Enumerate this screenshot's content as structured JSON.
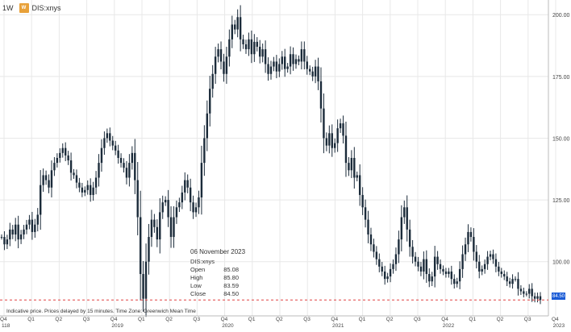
{
  "header": {
    "interval": "1W",
    "symbol_badge": "W",
    "symbol": "DIS:xnys"
  },
  "tooltip": {
    "date": "06 November 2023",
    "symbol": "DIS:xnys",
    "rows": [
      {
        "label": "Open",
        "value": "85.08"
      },
      {
        "label": "High",
        "value": "85.80"
      },
      {
        "label": "Low",
        "value": "83.59"
      },
      {
        "label": "Close",
        "value": "84.50"
      }
    ]
  },
  "footer": {
    "note": "Indicative price. Prices delayed by 15 minutes. Time Zone: Greenwich Mean Time"
  },
  "last_price_label": "84.50",
  "colors": {
    "candle": "#1b2b3a",
    "grid": "#e8e8e8",
    "last_price_line": "#e04040",
    "last_price_flag": "#1a5bd6"
  },
  "chart_data": {
    "type": "candlestick",
    "interval": "1W",
    "ylim": [
      80,
      203
    ],
    "y_ticks": [
      "100.00",
      "125.00",
      "150.00",
      "175.00",
      "200.00"
    ],
    "last_close": 84.5,
    "x_quarter_labels": [
      "Q4",
      "Q1",
      "Q2",
      "Q3",
      "Q4",
      "Q1",
      "Q2",
      "Q3",
      "Q4",
      "Q1",
      "Q2",
      "Q3",
      "Q4",
      "Q1",
      "Q2",
      "Q3",
      "Q4",
      "Q1",
      "Q2",
      "Q3",
      "Q4"
    ],
    "x_year_labels": [
      {
        "label": "118",
        "q_index": 0
      },
      {
        "label": "2019",
        "q_index": 2
      },
      {
        "label": "2020",
        "q_index": 6
      },
      {
        "label": "2021",
        "q_index": 10
      },
      {
        "label": "2022",
        "q_index": 14
      },
      {
        "label": "2023",
        "q_index": 18
      }
    ],
    "weekly_close": [
      110,
      107,
      109,
      113,
      111,
      115,
      109,
      111,
      113,
      115,
      117,
      112,
      115,
      119,
      131,
      135,
      133,
      130,
      137,
      140,
      142,
      144,
      146,
      143,
      141,
      136,
      135,
      132,
      130,
      128,
      129,
      131,
      127,
      130,
      134,
      140,
      146,
      150,
      152,
      149,
      147,
      145,
      142,
      140,
      138,
      134,
      140,
      144,
      133,
      118,
      95,
      85,
      100,
      110,
      117,
      114,
      109,
      120,
      124,
      125,
      118,
      110,
      118,
      122,
      124,
      128,
      133,
      130,
      124,
      120,
      122,
      126,
      140,
      150,
      160,
      170,
      176,
      183,
      186,
      181,
      176,
      183,
      190,
      196,
      194,
      199,
      190,
      188,
      186,
      190,
      184,
      189,
      187,
      183,
      186,
      180,
      176,
      179,
      181,
      177,
      180,
      183,
      178,
      179,
      184,
      180,
      182,
      181,
      186,
      181,
      178,
      177,
      175,
      179,
      173,
      162,
      150,
      147,
      152,
      146,
      148,
      154,
      156,
      151,
      140,
      137,
      142,
      134,
      135,
      127,
      122,
      117,
      111,
      107,
      104,
      101,
      98,
      96,
      93,
      94,
      97,
      99,
      103,
      109,
      118,
      122,
      113,
      106,
      102,
      100,
      98,
      96,
      101,
      95,
      92,
      94,
      102,
      99,
      97,
      96,
      95,
      96,
      93,
      91,
      92,
      97,
      103,
      107,
      112,
      110,
      104,
      100,
      96,
      97,
      99,
      102,
      103,
      101,
      98,
      96,
      95,
      94,
      92,
      91,
      93,
      93,
      89,
      88,
      87,
      87,
      89,
      86,
      85,
      86,
      84.5
    ]
  }
}
